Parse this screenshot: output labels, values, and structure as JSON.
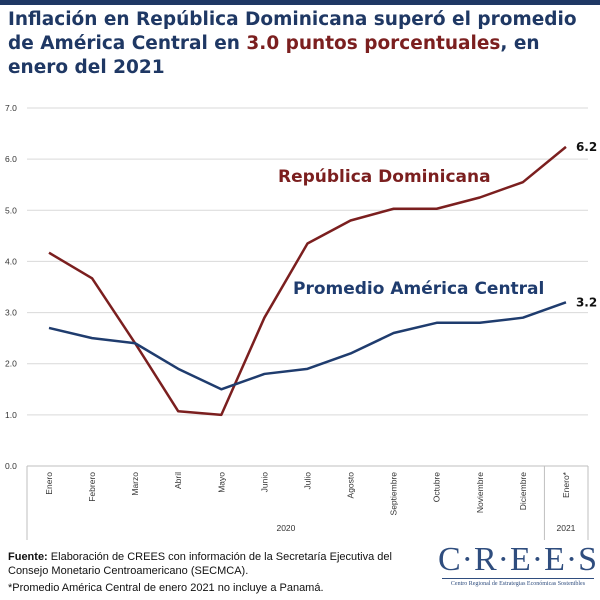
{
  "title": {
    "part1": "Inflación en República Dominicana superó el promedio de América Central en ",
    "highlight": "3.0 puntos porcentuales",
    "part2": ", en enero del 2021"
  },
  "colors": {
    "navy": "#1f3864",
    "rd": "#7b1f1f",
    "pac": "#1f3c6e"
  },
  "chart_data": {
    "type": "line",
    "categories": [
      "Enero",
      "Febrero",
      "Marzo",
      "Abril",
      "Mayo",
      "Junio",
      "Julio",
      "Agosto",
      "Septiembre",
      "Octubre",
      "Noviembre",
      "Diciembre",
      "Enero*"
    ],
    "groups": [
      {
        "label": "2020",
        "count": 12
      },
      {
        "label": "2021",
        "count": 1
      }
    ],
    "ylim": [
      0,
      7
    ],
    "yticks": [
      "0.0",
      "1.0",
      "2.0",
      "3.0",
      "4.0",
      "5.0",
      "6.0",
      "7.0"
    ],
    "grid": true,
    "series": [
      {
        "name": "República Dominicana",
        "color": "#7b1f1f",
        "values": [
          4.17,
          3.67,
          2.4,
          1.07,
          1.0,
          2.9,
          4.35,
          4.8,
          5.03,
          5.03,
          5.25,
          5.55,
          6.24
        ],
        "end_label": "6.2"
      },
      {
        "name": "Promedio América Central",
        "color": "#1f3c6e",
        "values": [
          2.7,
          2.5,
          2.4,
          1.9,
          1.5,
          1.8,
          1.9,
          2.2,
          2.6,
          2.8,
          2.8,
          2.9,
          3.2
        ],
        "end_label": "3.2"
      }
    ]
  },
  "footer": {
    "source_label": "Fuente:",
    "source_text": " Elaboración de CREES con información de la Secretaría Ejecutiva del Consejo Monetario Centroamericano (SECMCA).",
    "note": "*Promedio América Central de enero 2021 no incluye a Panamá."
  },
  "logo": {
    "name": "C·R·E·E·S",
    "subtitle": "Centro Regional de Estrategias Económicas Sostenibles"
  }
}
